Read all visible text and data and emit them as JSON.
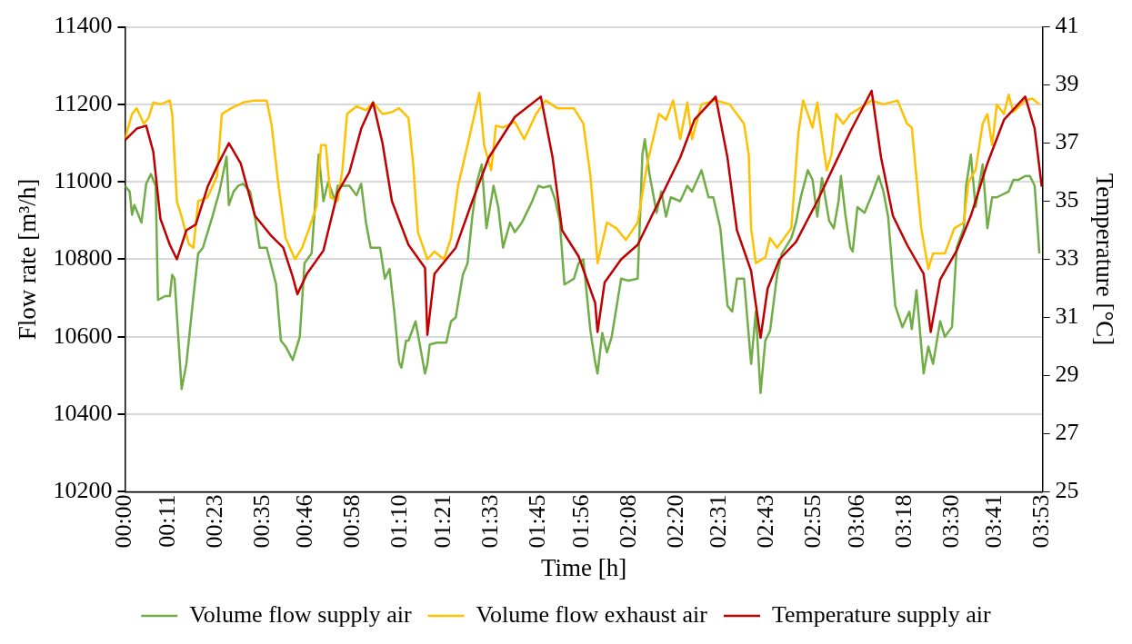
{
  "chart_data": {
    "type": "line",
    "xlabel": "Time [h]",
    "ylabel": "Flow rate [m³/h]",
    "y2label": "Temperature [°C]",
    "xlim": [
      0,
      3.8833
    ],
    "xticks": [
      {
        "value": 0,
        "label": "00:00"
      },
      {
        "value": 0.18333,
        "label": "00:11"
      },
      {
        "value": 0.38333,
        "label": "00:23"
      },
      {
        "value": 0.58333,
        "label": "00:35"
      },
      {
        "value": 0.76667,
        "label": "00:46"
      },
      {
        "value": 0.96667,
        "label": "00:58"
      },
      {
        "value": 1.16667,
        "label": "01:10"
      },
      {
        "value": 1.35,
        "label": "01:21"
      },
      {
        "value": 1.55,
        "label": "01:33"
      },
      {
        "value": 1.75,
        "label": "01:45"
      },
      {
        "value": 1.93333,
        "label": "01:56"
      },
      {
        "value": 2.13333,
        "label": "02:08"
      },
      {
        "value": 2.33333,
        "label": "02:20"
      },
      {
        "value": 2.51667,
        "label": "02:31"
      },
      {
        "value": 2.71667,
        "label": "02:43"
      },
      {
        "value": 2.91667,
        "label": "02:55"
      },
      {
        "value": 3.1,
        "label": "03:06"
      },
      {
        "value": 3.3,
        "label": "03:18"
      },
      {
        "value": 3.5,
        "label": "03:30"
      },
      {
        "value": 3.68333,
        "label": "03:41"
      },
      {
        "value": 3.8833,
        "label": "03:53"
      }
    ],
    "ylim": [
      10200,
      11400
    ],
    "yticks": [
      10200,
      10400,
      10600,
      10800,
      11000,
      11200,
      11400
    ],
    "y2lim": [
      25,
      41
    ],
    "y2ticks": [
      25,
      27,
      29,
      31,
      33,
      35,
      37,
      39,
      41
    ],
    "grid": "y",
    "legend": "bottom",
    "marker": "none",
    "series": [
      {
        "name": "Volume flow supply air",
        "color": "#70ad47",
        "x": [
          0,
          0.02,
          0.03,
          0.04,
          0.07,
          0.09,
          0.11,
          0.13,
          0.14,
          0.17,
          0.19,
          0.2,
          0.21,
          0.24,
          0.26,
          0.29,
          0.31,
          0.33,
          0.37,
          0.4,
          0.43,
          0.44,
          0.46,
          0.48,
          0.5,
          0.53,
          0.55,
          0.57,
          0.6,
          0.64,
          0.66,
          0.68,
          0.71,
          0.74,
          0.76,
          0.79,
          0.82,
          0.84,
          0.86,
          0.89,
          0.9,
          0.93,
          0.95,
          0.98,
          1.0,
          1.02,
          1.04,
          1.08,
          1.1,
          1.12,
          1.14,
          1.16,
          1.17,
          1.19,
          1.2,
          1.23,
          1.27,
          1.28,
          1.29,
          1.32,
          1.36,
          1.38,
          1.4,
          1.43,
          1.45,
          1.47,
          1.49,
          1.51,
          1.53,
          1.56,
          1.58,
          1.6,
          1.63,
          1.65,
          1.68,
          1.72,
          1.75,
          1.77,
          1.8,
          1.82,
          1.84,
          1.86,
          1.9,
          1.92,
          1.94,
          1.97,
          1.99,
          2.0,
          2.02,
          2.04,
          2.06,
          2.1,
          2.13,
          2.17,
          2.19,
          2.2,
          2.22,
          2.25,
          2.27,
          2.29,
          2.31,
          2.35,
          2.38,
          2.4,
          2.44,
          2.47,
          2.49,
          2.52,
          2.55,
          2.57,
          2.59,
          2.62,
          2.65,
          2.67,
          2.69,
          2.71,
          2.73,
          2.76,
          2.78,
          2.82,
          2.84,
          2.86,
          2.89,
          2.91,
          2.93,
          2.95,
          2.98,
          3.0,
          3.02,
          3.03,
          3.05,
          3.07,
          3.08,
          3.1,
          3.13,
          3.16,
          3.19,
          3.21,
          3.23,
          3.26,
          3.29,
          3.32,
          3.33,
          3.35,
          3.38,
          3.4,
          3.42,
          3.45,
          3.47,
          3.5,
          3.52,
          3.55,
          3.56,
          3.58,
          3.6,
          3.63,
          3.65,
          3.67,
          3.69,
          3.74,
          3.76,
          3.78,
          3.81,
          3.83,
          3.85,
          3.87
        ],
        "values": [
          10990,
          10975,
          10915,
          10940,
          10895,
          10995,
          11020,
          10990,
          10695,
          10705,
          10705,
          10760,
          10750,
          10465,
          10530,
          10705,
          10815,
          10830,
          10910,
          10975,
          11065,
          10940,
          10975,
          10990,
          10995,
          10975,
          10910,
          10830,
          10830,
          10735,
          10590,
          10575,
          10540,
          10600,
          10790,
          10815,
          11070,
          10950,
          11000,
          10950,
          10990,
          10990,
          10990,
          10965,
          10995,
          10895,
          10830,
          10830,
          10750,
          10775,
          10665,
          10535,
          10520,
          10590,
          10590,
          10640,
          10505,
          10530,
          10580,
          10585,
          10585,
          10640,
          10650,
          10760,
          10790,
          10910,
          11000,
          11045,
          10880,
          10990,
          10935,
          10830,
          10895,
          10870,
          10895,
          10945,
          10990,
          10985,
          10990,
          10955,
          10900,
          10735,
          10750,
          10790,
          10800,
          10615,
          10535,
          10505,
          10610,
          10560,
          10600,
          10750,
          10745,
          10750,
          11070,
          11110,
          11020,
          10920,
          10975,
          10910,
          10960,
          10950,
          10990,
          10975,
          11030,
          10960,
          10960,
          10880,
          10680,
          10665,
          10750,
          10750,
          10530,
          10665,
          10455,
          10590,
          10615,
          10760,
          10815,
          10855,
          10895,
          10960,
          11030,
          11005,
          10910,
          11010,
          10900,
          10880,
          10950,
          11015,
          10910,
          10830,
          10820,
          10935,
          10920,
          10965,
          11015,
          10975,
          10910,
          10680,
          10625,
          10665,
          10620,
          10720,
          10505,
          10575,
          10530,
          10640,
          10600,
          10625,
          10830,
          10880,
          10990,
          11070,
          10935,
          11045,
          10880,
          10960,
          10960,
          10975,
          11005,
          11005,
          11015,
          11015,
          10990,
          10815
        ]
      },
      {
        "name": "Volume flow exhaust air",
        "color": "#ffc000",
        "x": [
          0,
          0.03,
          0.05,
          0.08,
          0.1,
          0.12,
          0.15,
          0.19,
          0.2,
          0.22,
          0.24,
          0.27,
          0.29,
          0.31,
          0.35,
          0.39,
          0.41,
          0.45,
          0.5,
          0.55,
          0.6,
          0.62,
          0.65,
          0.68,
          0.72,
          0.75,
          0.78,
          0.81,
          0.83,
          0.85,
          0.87,
          0.9,
          0.92,
          0.94,
          0.98,
          1.02,
          1.05,
          1.09,
          1.13,
          1.16,
          1.2,
          1.22,
          1.24,
          1.28,
          1.31,
          1.35,
          1.38,
          1.41,
          1.45,
          1.5,
          1.52,
          1.55,
          1.57,
          1.6,
          1.65,
          1.69,
          1.74,
          1.78,
          1.83,
          1.9,
          1.94,
          1.97,
          1.99,
          2.0,
          2.04,
          2.08,
          2.12,
          2.17,
          2.21,
          2.26,
          2.29,
          2.32,
          2.35,
          2.38,
          2.4,
          2.44,
          2.5,
          2.56,
          2.62,
          2.64,
          2.65,
          2.67,
          2.71,
          2.73,
          2.76,
          2.82,
          2.83,
          2.85,
          2.87,
          2.91,
          2.93,
          2.97,
          2.99,
          3.01,
          3.04,
          3.07,
          3.11,
          3.16,
          3.21,
          3.27,
          3.31,
          3.33,
          3.37,
          3.4,
          3.42,
          3.47,
          3.51,
          3.55,
          3.57,
          3.6,
          3.63,
          3.65,
          3.67,
          3.69,
          3.72,
          3.74,
          3.76,
          3.81,
          3.84,
          3.87
        ],
        "values": [
          11110,
          11175,
          11190,
          11150,
          11165,
          11205,
          11200,
          11210,
          11175,
          10950,
          10910,
          10840,
          10830,
          10950,
          10960,
          11015,
          11175,
          11190,
          11205,
          11210,
          11210,
          11150,
          10990,
          10855,
          10800,
          10830,
          10880,
          10935,
          11095,
          11095,
          10960,
          10950,
          11030,
          11175,
          11195,
          11185,
          11205,
          11175,
          11180,
          11190,
          11165,
          11045,
          10870,
          10800,
          10820,
          10800,
          10855,
          10990,
          11095,
          11230,
          11095,
          11030,
          11145,
          11140,
          11155,
          11110,
          11175,
          11210,
          11190,
          11190,
          11150,
          11015,
          10870,
          10790,
          10895,
          10880,
          10850,
          10895,
          11045,
          11175,
          11160,
          11210,
          11110,
          11205,
          11110,
          11200,
          11210,
          11200,
          11150,
          11070,
          10880,
          10790,
          10805,
          10855,
          10830,
          10880,
          10960,
          11125,
          11210,
          11140,
          11205,
          11030,
          11070,
          11175,
          11150,
          11175,
          11190,
          11210,
          11200,
          11210,
          11150,
          11140,
          10880,
          10775,
          10815,
          10815,
          10880,
          10895,
          11000,
          11030,
          11150,
          11175,
          11095,
          11200,
          11175,
          11225,
          11180,
          11210,
          11215,
          11200
        ]
      },
      {
        "name": "Temperature supply air",
        "color": "#c00000",
        "axis": "y2",
        "x": [
          0,
          0.05,
          0.09,
          0.12,
          0.15,
          0.19,
          0.22,
          0.26,
          0.3,
          0.35,
          0.39,
          0.44,
          0.49,
          0.55,
          0.62,
          0.67,
          0.71,
          0.73,
          0.77,
          0.84,
          0.9,
          0.95,
          1.0,
          1.05,
          1.09,
          1.13,
          1.2,
          1.27,
          1.28,
          1.31,
          1.36,
          1.4,
          1.47,
          1.54,
          1.65,
          1.76,
          1.81,
          1.85,
          1.92,
          1.99,
          2.0,
          2.03,
          2.1,
          2.17,
          2.26,
          2.35,
          2.41,
          2.5,
          2.55,
          2.59,
          2.65,
          2.69,
          2.72,
          2.77,
          2.84,
          2.93,
          3.0,
          3.07,
          3.16,
          3.2,
          3.25,
          3.31,
          3.38,
          3.41,
          3.45,
          3.52,
          3.58,
          3.65,
          3.72,
          3.81,
          3.85,
          3.88
        ],
        "values": [
          37.1,
          37.5,
          37.6,
          36.7,
          34.4,
          33.5,
          33.0,
          34.0,
          34.2,
          35.5,
          36.2,
          37.0,
          36.3,
          34.5,
          33.8,
          33.4,
          32.4,
          31.8,
          32.5,
          33.3,
          35.3,
          36.0,
          37.5,
          38.4,
          37.0,
          35.0,
          33.5,
          32.7,
          30.4,
          32.5,
          33.0,
          33.4,
          35.0,
          36.5,
          37.9,
          38.6,
          36.5,
          34.0,
          33.1,
          31.5,
          30.5,
          32.2,
          33.0,
          33.5,
          35.0,
          36.5,
          37.8,
          38.6,
          36.5,
          34.0,
          32.6,
          30.3,
          32.0,
          33.0,
          33.6,
          35.0,
          36.2,
          37.4,
          38.8,
          36.5,
          34.5,
          33.5,
          32.5,
          30.5,
          32.3,
          33.3,
          34.5,
          36.3,
          37.8,
          38.6,
          37.5,
          35.5
        ]
      }
    ]
  }
}
